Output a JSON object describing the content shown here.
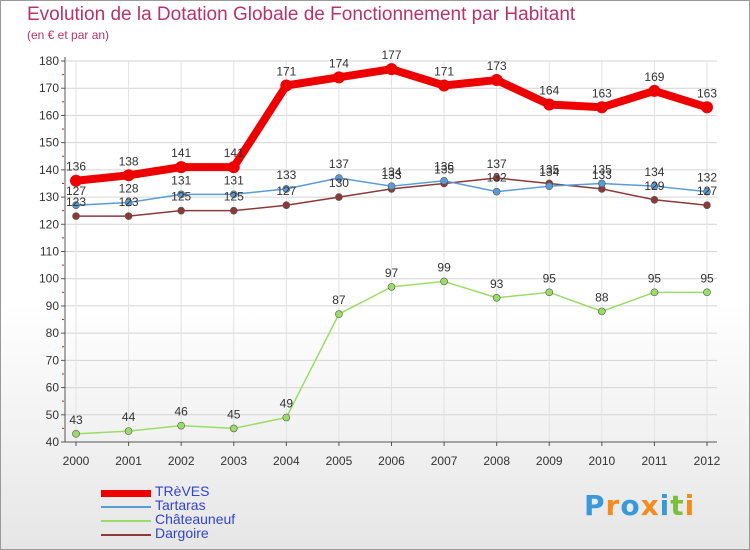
{
  "chart_data": {
    "type": "line",
    "title": "Evolution de la Dotation Globale de Fonctionnement par Habitant",
    "subtitle": "(en € et par an)",
    "xlabel": "",
    "ylabel": "",
    "ylim": [
      40,
      180
    ],
    "yticks": [
      40,
      50,
      60,
      70,
      80,
      90,
      100,
      110,
      120,
      130,
      140,
      150,
      160,
      170,
      180
    ],
    "categories": [
      "2000",
      "2001",
      "2002",
      "2003",
      "2004",
      "2005",
      "2006",
      "2007",
      "2008",
      "2009",
      "2010",
      "2011",
      "2012"
    ],
    "grid": true,
    "legend_position": "bottom-left",
    "series": [
      {
        "name": "TRèVES",
        "color": "#ee0000",
        "values": [
          136,
          138,
          141,
          141,
          171,
          174,
          177,
          171,
          173,
          164,
          163,
          169,
          163
        ]
      },
      {
        "name": "Tartaras",
        "color": "#5b9bd5",
        "values": [
          127,
          128,
          131,
          131,
          133,
          137,
          134,
          136,
          132,
          134,
          135,
          134,
          132
        ]
      },
      {
        "name": "Châteauneuf",
        "color": "#99dd66",
        "values": [
          43,
          44,
          46,
          45,
          49,
          87,
          97,
          99,
          93,
          95,
          88,
          95,
          95
        ]
      },
      {
        "name": "Dargoire",
        "color": "#8b3a3a",
        "values": [
          123,
          123,
          125,
          125,
          127,
          130,
          133,
          135,
          137,
          135,
          133,
          129,
          127
        ]
      }
    ]
  },
  "logo": {
    "letters": [
      "P",
      "r",
      "o",
      "x",
      "i",
      "t",
      "i"
    ],
    "colors": [
      "#3a9ad9",
      "#f28c1e",
      "#3a9ad9",
      "#f28c1e",
      "#3a9ad9",
      "#7bbf3a",
      "#f28c1e"
    ]
  }
}
